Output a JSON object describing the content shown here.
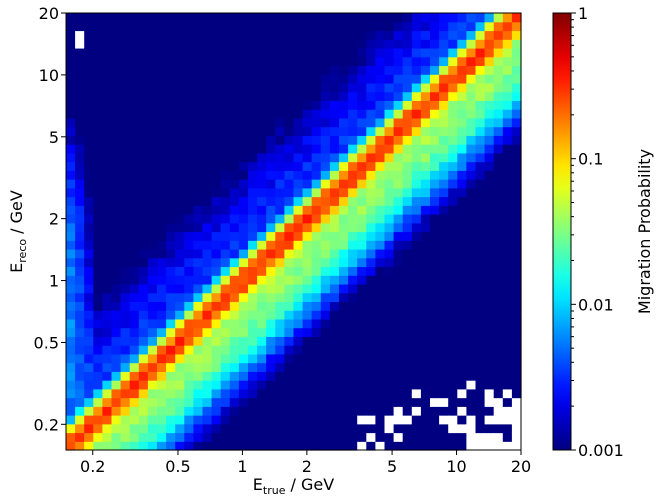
{
  "chart_data": {
    "type": "heatmap",
    "title": "",
    "x_axis": {
      "label_main": "E",
      "label_sub": "true",
      "label_tail": " / GeV",
      "scale": "log",
      "range": [
        0.15,
        20
      ],
      "ticks": [
        {
          "value": 0.2,
          "label": "0.2"
        },
        {
          "value": 0.5,
          "label": "0.5"
        },
        {
          "value": 1,
          "label": "1"
        },
        {
          "value": 2,
          "label": "2"
        },
        {
          "value": 5,
          "label": "5"
        },
        {
          "value": 10,
          "label": "10"
        },
        {
          "value": 20,
          "label": "20"
        }
      ]
    },
    "y_axis": {
      "label_main": "E",
      "label_sub": "reco",
      "label_tail": " / GeV",
      "scale": "log",
      "range": [
        0.15,
        20
      ],
      "ticks": [
        {
          "value": 0.2,
          "label": "0.2"
        },
        {
          "value": 0.5,
          "label": "0.5"
        },
        {
          "value": 1,
          "label": "1"
        },
        {
          "value": 2,
          "label": "2"
        },
        {
          "value": 5,
          "label": "5"
        },
        {
          "value": 10,
          "label": "10"
        },
        {
          "value": 20,
          "label": "20"
        }
      ]
    },
    "colorbar": {
      "label": "Migration Probability",
      "scale": "log",
      "range": [
        0.001,
        1
      ],
      "colormap": "jet",
      "ticks": [
        {
          "value": 0.001,
          "label": "0.001"
        },
        {
          "value": 0.01,
          "label": "0.01"
        },
        {
          "value": 0.1,
          "label": "0.1"
        },
        {
          "value": 1,
          "label": "1"
        }
      ]
    },
    "bins": {
      "x": 50,
      "y": 50
    },
    "features": {
      "diagonal_peak_probability": 0.3,
      "diagonal_width_log10_gev": 0.045,
      "low_side_tail": "broad band below diagonal (E_reco < E_true)",
      "low_energy_vertical_feature": "E_true near 0.15-0.2 GeV spread up to E_reco ~ 5 GeV",
      "empty_bins": "white cells in top-left and bottom-right corners"
    },
    "grid": false,
    "legend": "none"
  }
}
